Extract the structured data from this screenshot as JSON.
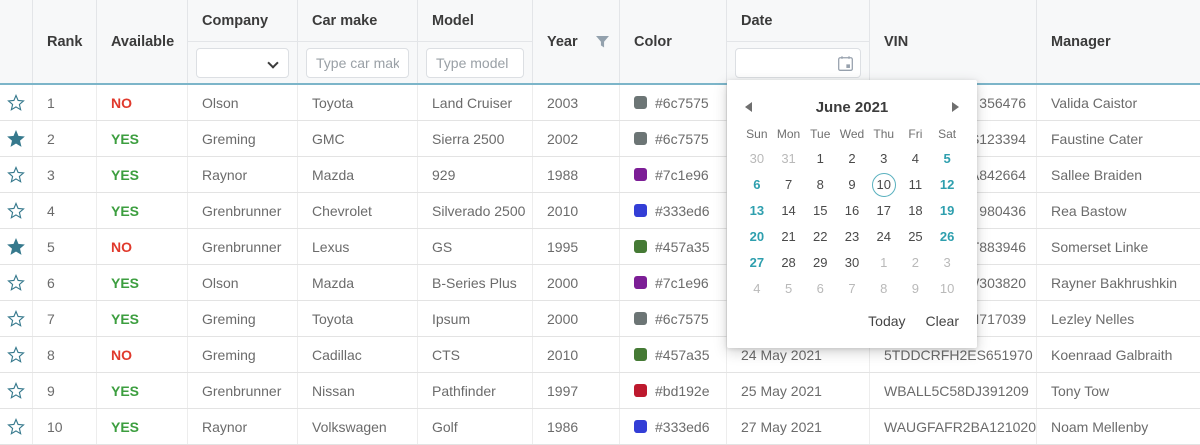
{
  "header": {
    "labels": {
      "rank": "Rank",
      "available": "Available",
      "company": "Company",
      "car_make": "Car make",
      "model": "Model",
      "year": "Year",
      "color": "Color",
      "date": "Date",
      "vin": "VIN",
      "manager": "Manager"
    },
    "filters": {
      "company_value": "",
      "car_make_placeholder": "Type car make",
      "model_placeholder": "Type model",
      "date_value": ""
    }
  },
  "rows": [
    {
      "starred": false,
      "rank": "1",
      "available": "NO",
      "company": "Olson",
      "car_make": "Toyota",
      "model": "Land Cruiser",
      "year": "2003",
      "color": "#6c7575",
      "date": "",
      "vin": "356476",
      "vin_clipped": true,
      "manager": "Valida Caistor"
    },
    {
      "starred": true,
      "rank": "2",
      "available": "YES",
      "company": "Greming",
      "car_make": "GMC",
      "model": "Sierra 2500",
      "year": "2002",
      "color": "#6c7575",
      "date": "",
      "vin": "S123394",
      "vin_clipped": true,
      "manager": "Faustine Cater"
    },
    {
      "starred": false,
      "rank": "3",
      "available": "YES",
      "company": "Raynor",
      "car_make": "Mazda",
      "model": "929",
      "year": "1988",
      "color": "#7c1e96",
      "date": "",
      "vin": "A842664",
      "vin_clipped": true,
      "manager": "Sallee Braiden"
    },
    {
      "starred": false,
      "rank": "4",
      "available": "YES",
      "company": "Grenbrunner",
      "car_make": "Chevrolet",
      "model": "Silverado 2500",
      "year": "2010",
      "color": "#333ed6",
      "date": "",
      "vin": "980436",
      "vin_clipped": true,
      "manager": "Rea Bastow"
    },
    {
      "starred": true,
      "rank": "5",
      "available": "NO",
      "company": "Grenbrunner",
      "car_make": "Lexus",
      "model": "GS",
      "year": "1995",
      "color": "#457a35",
      "date": "",
      "vin": "T883946",
      "vin_clipped": true,
      "manager": "Somerset Linke"
    },
    {
      "starred": false,
      "rank": "6",
      "available": "YES",
      "company": "Olson",
      "car_make": "Mazda",
      "model": "B-Series Plus",
      "year": "2000",
      "color": "#7c1e96",
      "date": "",
      "vin": "W303820",
      "vin_clipped": true,
      "manager": "Rayner Bakhrushkin"
    },
    {
      "starred": false,
      "rank": "7",
      "available": "YES",
      "company": "Greming",
      "car_make": "Toyota",
      "model": "Ipsum",
      "year": "2000",
      "color": "#6c7575",
      "date": "",
      "vin": "N717039",
      "vin_clipped": true,
      "manager": "Lezley Nelles"
    },
    {
      "starred": false,
      "rank": "8",
      "available": "NO",
      "company": "Greming",
      "car_make": "Cadillac",
      "model": "CTS",
      "year": "2010",
      "color": "#457a35",
      "date": "24 May 2021",
      "vin": "5TDDCRFH2ES651970",
      "vin_clipped": false,
      "manager": "Koenraad Galbraith"
    },
    {
      "starred": false,
      "rank": "9",
      "available": "YES",
      "company": "Grenbrunner",
      "car_make": "Nissan",
      "model": "Pathfinder",
      "year": "1997",
      "color": "#bd192e",
      "date": "25 May 2021",
      "vin": "WBALL5C58DJ391209",
      "vin_clipped": false,
      "manager": "Tony Tow"
    },
    {
      "starred": false,
      "rank": "10",
      "available": "YES",
      "company": "Raynor",
      "car_make": "Volkswagen",
      "model": "Golf",
      "year": "1986",
      "color": "#333ed6",
      "date": "27 May 2021",
      "vin": "WAUGFAFR2BA121020",
      "vin_clipped": false,
      "manager": "Noam Mellenby"
    }
  ],
  "calendar": {
    "title": "June 2021",
    "day_headers": [
      "Sun",
      "Mon",
      "Tue",
      "Wed",
      "Thu",
      "Fri",
      "Sat"
    ],
    "selected_day": "10",
    "weeks": [
      [
        {
          "d": "30",
          "t": "other"
        },
        {
          "d": "31",
          "t": "other"
        },
        {
          "d": "1",
          "t": "day"
        },
        {
          "d": "2",
          "t": "day"
        },
        {
          "d": "3",
          "t": "day"
        },
        {
          "d": "4",
          "t": "day"
        },
        {
          "d": "5",
          "t": "wknd"
        }
      ],
      [
        {
          "d": "6",
          "t": "wknd"
        },
        {
          "d": "7",
          "t": "day"
        },
        {
          "d": "8",
          "t": "day"
        },
        {
          "d": "9",
          "t": "day"
        },
        {
          "d": "10",
          "t": "sel"
        },
        {
          "d": "11",
          "t": "day"
        },
        {
          "d": "12",
          "t": "wknd"
        }
      ],
      [
        {
          "d": "13",
          "t": "wknd"
        },
        {
          "d": "14",
          "t": "day"
        },
        {
          "d": "15",
          "t": "day"
        },
        {
          "d": "16",
          "t": "day"
        },
        {
          "d": "17",
          "t": "day"
        },
        {
          "d": "18",
          "t": "day"
        },
        {
          "d": "19",
          "t": "wknd"
        }
      ],
      [
        {
          "d": "20",
          "t": "wknd"
        },
        {
          "d": "21",
          "t": "day"
        },
        {
          "d": "22",
          "t": "day"
        },
        {
          "d": "23",
          "t": "day"
        },
        {
          "d": "24",
          "t": "day"
        },
        {
          "d": "25",
          "t": "day"
        },
        {
          "d": "26",
          "t": "wknd"
        }
      ],
      [
        {
          "d": "27",
          "t": "wknd"
        },
        {
          "d": "28",
          "t": "day"
        },
        {
          "d": "29",
          "t": "day"
        },
        {
          "d": "30",
          "t": "day"
        },
        {
          "d": "1",
          "t": "other"
        },
        {
          "d": "2",
          "t": "other"
        },
        {
          "d": "3",
          "t": "other"
        }
      ],
      [
        {
          "d": "4",
          "t": "other"
        },
        {
          "d": "5",
          "t": "other"
        },
        {
          "d": "6",
          "t": "other"
        },
        {
          "d": "7",
          "t": "other"
        },
        {
          "d": "8",
          "t": "other"
        },
        {
          "d": "9",
          "t": "other"
        },
        {
          "d": "10",
          "t": "other"
        }
      ]
    ],
    "footer": {
      "today": "Today",
      "clear": "Clear"
    }
  },
  "colors": {
    "accent_teal": "#2e9fae",
    "star_teal": "#36798d",
    "header_underline": "#7cb5c9",
    "yes_green": "#3c9e3f",
    "no_red": "#e0392c"
  }
}
